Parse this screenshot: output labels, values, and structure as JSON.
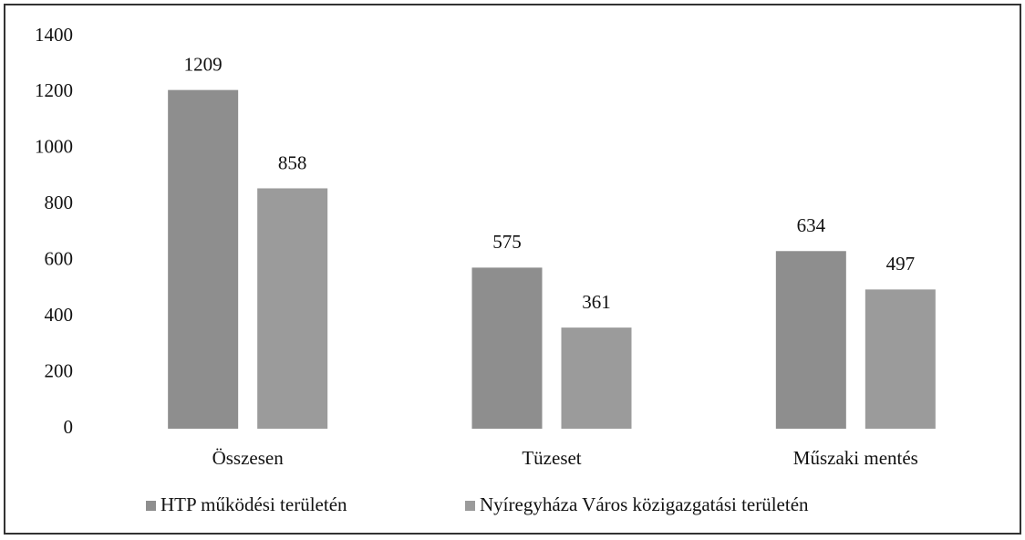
{
  "chart_data": {
    "type": "bar",
    "categories": [
      "Összesen",
      "Tüzeset",
      "Műszaki mentés"
    ],
    "series": [
      {
        "name": "HTP működési területén",
        "color": "#8e8e8e",
        "values": [
          1209,
          575,
          634
        ]
      },
      {
        "name": "Nyíregyháza Város közigazgatási területén",
        "color": "#9b9b9b",
        "values": [
          858,
          361,
          497
        ]
      }
    ],
    "ylim": [
      0,
      1400
    ],
    "yticks": [
      0,
      200,
      400,
      600,
      800,
      1000,
      1200,
      1400
    ],
    "grid": false,
    "legend": "bottom"
  }
}
